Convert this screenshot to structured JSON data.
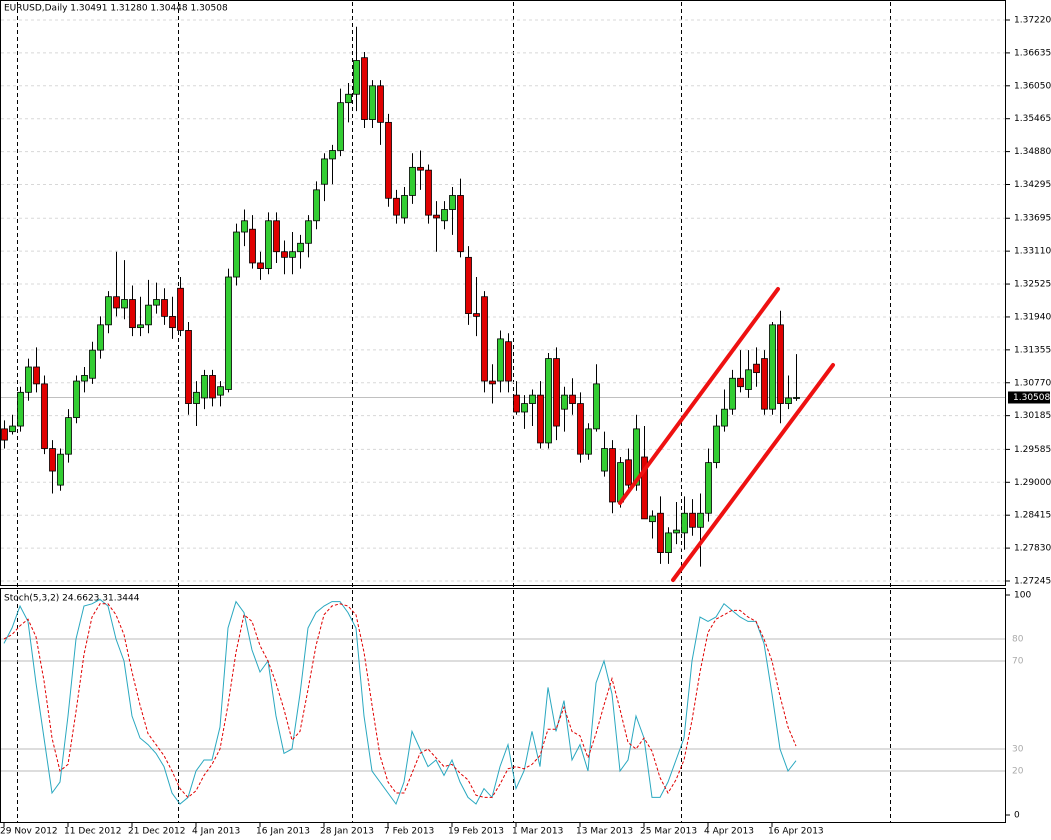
{
  "chart_data": [
    {
      "type": "candlestick",
      "title": "EURUSD,Daily  1.30491 1.31280 1.30448 1.30508",
      "categories": [
        "29 Nov 2012",
        null,
        null,
        null,
        null,
        null,
        null,
        null,
        "11 Dec 2012",
        null,
        null,
        null,
        null,
        null,
        null,
        null,
        "21 Dec 2012",
        null,
        null,
        null,
        null,
        null,
        null,
        null,
        "4 Jan 2013",
        null,
        null,
        null,
        null,
        null,
        null,
        null,
        "16 Jan 2013",
        null,
        null,
        null,
        null,
        null,
        null,
        null,
        "28 Jan 2013",
        null,
        null,
        null,
        null,
        null,
        null,
        null,
        "7 Feb 2013",
        null,
        null,
        null,
        null,
        null,
        null,
        null,
        "19 Feb 2013",
        null,
        null,
        null,
        null,
        null,
        null,
        null,
        "1 Mar 2013",
        null,
        null,
        null,
        null,
        null,
        null,
        null,
        "13 Mar 2013",
        null,
        null,
        null,
        null,
        null,
        null,
        null,
        "25 Mar 2013",
        null,
        null,
        null,
        null,
        null,
        null,
        null,
        "4 Apr 2013",
        null,
        null,
        null,
        null,
        null,
        null,
        null,
        "16 Apr 2013",
        null,
        null,
        null
      ],
      "candles": [
        [
          1.2995,
          1.301,
          1.296,
          1.2975
        ],
        [
          1.299,
          1.302,
          1.2985,
          1.3
        ],
        [
          1.3,
          1.307,
          1.299,
          1.306
        ],
        [
          1.306,
          1.312,
          1.3045,
          1.3105
        ],
        [
          1.3105,
          1.314,
          1.306,
          1.3075
        ],
        [
          1.3075,
          1.309,
          1.295,
          1.296
        ],
        [
          1.296,
          1.2975,
          1.288,
          1.292
        ],
        [
          1.2895,
          1.296,
          1.2885,
          1.295
        ],
        [
          1.295,
          1.303,
          1.2935,
          1.3015
        ],
        [
          1.3015,
          1.309,
          1.3005,
          1.308
        ],
        [
          1.308,
          1.3105,
          1.306,
          1.309
        ],
        [
          1.3085,
          1.315,
          1.3075,
          1.3135
        ],
        [
          1.3135,
          1.3195,
          1.312,
          1.318
        ],
        [
          1.318,
          1.324,
          1.3165,
          1.323
        ],
        [
          1.323,
          1.331,
          1.3195,
          1.321
        ],
        [
          1.321,
          1.3295,
          1.319,
          1.3225
        ],
        [
          1.3225,
          1.325,
          1.316,
          1.3175
        ],
        [
          1.3175,
          1.323,
          1.316,
          1.318
        ],
        [
          1.318,
          1.326,
          1.3165,
          1.3215
        ],
        [
          1.3215,
          1.3255,
          1.32,
          1.3225
        ],
        [
          1.3225,
          1.3245,
          1.318,
          1.3195
        ],
        [
          1.3195,
          1.323,
          1.3155,
          1.3175
        ],
        [
          1.3245,
          1.3265,
          1.316,
          1.317
        ],
        [
          1.317,
          1.3185,
          1.302,
          1.304
        ],
        [
          1.304,
          1.308,
          1.3,
          1.306
        ],
        [
          1.305,
          1.31,
          1.303,
          1.309
        ],
        [
          1.309,
          1.31,
          1.3035,
          1.305
        ],
        [
          1.3055,
          1.308,
          1.3035,
          1.307
        ],
        [
          1.3065,
          1.328,
          1.306,
          1.3265
        ],
        [
          1.3265,
          1.336,
          1.325,
          1.3345
        ],
        [
          1.3345,
          1.3385,
          1.332,
          1.3365
        ],
        [
          1.335,
          1.3375,
          1.328,
          1.329
        ],
        [
          1.329,
          1.331,
          1.326,
          1.328
        ],
        [
          1.328,
          1.338,
          1.327,
          1.3365
        ],
        [
          1.3365,
          1.338,
          1.329,
          1.331
        ],
        [
          1.331,
          1.333,
          1.327,
          1.33
        ],
        [
          1.33,
          1.3345,
          1.327,
          1.331
        ],
        [
          1.331,
          1.334,
          1.328,
          1.3325
        ],
        [
          1.3325,
          1.3375,
          1.33,
          1.3365
        ],
        [
          1.3365,
          1.3435,
          1.335,
          1.342
        ],
        [
          1.343,
          1.3485,
          1.34,
          1.3475
        ],
        [
          1.3475,
          1.35,
          1.343,
          1.349
        ],
        [
          1.349,
          1.36,
          1.348,
          1.3575
        ],
        [
          1.3575,
          1.361,
          1.354,
          1.359
        ],
        [
          1.359,
          1.371,
          1.356,
          1.365
        ],
        [
          1.3655,
          1.3665,
          1.353,
          1.3545
        ],
        [
          1.3545,
          1.3615,
          1.353,
          1.3605
        ],
        [
          1.3605,
          1.3615,
          1.35,
          1.354
        ],
        [
          1.354,
          1.3555,
          1.339,
          1.3405
        ],
        [
          1.3405,
          1.342,
          1.336,
          1.3375
        ],
        [
          1.337,
          1.3425,
          1.336,
          1.341
        ],
        [
          1.341,
          1.3485,
          1.3395,
          1.346
        ],
        [
          1.346,
          1.349,
          1.342,
          1.3455
        ],
        [
          1.3455,
          1.3465,
          1.336,
          1.3375
        ],
        [
          1.3375,
          1.34,
          1.331,
          1.337
        ],
        [
          1.3365,
          1.34,
          1.335,
          1.3385
        ],
        [
          1.3385,
          1.3425,
          1.334,
          1.341
        ],
        [
          1.341,
          1.344,
          1.33,
          1.331
        ],
        [
          1.33,
          1.332,
          1.318,
          1.32
        ],
        [
          1.32,
          1.3265,
          1.316,
          1.3195
        ],
        [
          1.323,
          1.324,
          1.306,
          1.308
        ],
        [
          1.308,
          1.311,
          1.304,
          1.3075
        ],
        [
          1.308,
          1.317,
          1.306,
          1.3155
        ],
        [
          1.315,
          1.3165,
          1.306,
          1.308
        ],
        [
          1.3055,
          1.308,
          1.302,
          1.3025
        ],
        [
          1.3025,
          1.3055,
          1.2995,
          1.304
        ],
        [
          1.304,
          1.3065,
          1.3,
          1.3055
        ],
        [
          1.3055,
          1.308,
          1.296,
          1.297
        ],
        [
          1.297,
          1.313,
          1.296,
          1.312
        ],
        [
          1.312,
          1.314,
          1.2975,
          1.3
        ],
        [
          1.303,
          1.307,
          1.299,
          1.3055
        ],
        [
          1.3055,
          1.3085,
          1.302,
          1.304
        ],
        [
          1.304,
          1.306,
          1.2935,
          1.295
        ],
        [
          1.295,
          1.3005,
          1.294,
          1.2995
        ],
        [
          1.2995,
          1.311,
          1.299,
          1.3075
        ],
        [
          1.292,
          1.299,
          1.291,
          1.296
        ],
        [
          1.296,
          1.2975,
          1.2845,
          1.2865
        ],
        [
          1.2865,
          1.2945,
          1.2855,
          1.2935
        ],
        [
          1.294,
          1.296,
          1.2885,
          1.2895
        ],
        [
          1.2895,
          1.302,
          1.2885,
          1.2995
        ],
        [
          1.2945,
          1.3,
          1.2835,
          1.2835
        ],
        [
          1.283,
          1.285,
          1.28,
          1.284
        ],
        [
          1.2845,
          1.2875,
          1.2755,
          1.2775
        ],
        [
          1.2775,
          1.282,
          1.2755,
          1.281
        ],
        [
          1.281,
          1.2865,
          1.279,
          1.2815
        ],
        [
          1.281,
          1.2875,
          1.278,
          1.2845
        ],
        [
          1.2845,
          1.287,
          1.2805,
          1.282
        ],
        [
          1.282,
          1.288,
          1.275,
          1.2845
        ],
        [
          1.2845,
          1.296,
          1.283,
          1.2935
        ],
        [
          1.2935,
          1.302,
          1.2925,
          1.3
        ],
        [
          1.3,
          1.3065,
          1.299,
          1.303
        ],
        [
          1.303,
          1.31,
          1.302,
          1.3085
        ],
        [
          1.3085,
          1.3135,
          1.306,
          1.307
        ],
        [
          1.3065,
          1.3135,
          1.305,
          1.31
        ],
        [
          1.311,
          1.314,
          1.307,
          1.3095
        ],
        [
          1.312,
          1.3135,
          1.302,
          1.303
        ],
        [
          1.303,
          1.3185,
          1.302,
          1.318
        ],
        [
          1.318,
          1.3205,
          1.3005,
          1.304
        ],
        [
          1.304,
          1.309,
          1.303,
          1.305
        ],
        [
          1.30491,
          1.3128,
          1.30448,
          1.30508
        ]
      ],
      "up_color": "#32cd32",
      "down_color": "#e00000",
      "ylim": [
        1.27245,
        1.3722
      ],
      "yticks": [
        {
          "value": 1.3722,
          "label": "1.37220"
        },
        1.36635,
        {
          "value": 1.3605,
          "label": "1.36050"
        },
        1.35465,
        {
          "value": 1.3488,
          "label": "1.34880"
        },
        1.34295,
        1.33695,
        {
          "value": 1.3311,
          "label": "1.33110"
        },
        1.32525,
        {
          "value": 1.3194,
          "label": "1.31940"
        },
        1.31355,
        {
          "value": 1.3077,
          "label": "1.30770"
        },
        1.30185,
        1.29585,
        {
          "value": 1.29,
          "label": "1.29000"
        },
        1.28415,
        {
          "value": 1.2783,
          "label": "1.27830"
        },
        1.27245
      ],
      "last_price": 1.30508,
      "grid": true
    },
    {
      "type": "line",
      "title": "Stoch(5,3,2) 24.6623 31.3444",
      "series": [
        {
          "color": "#2aa8c0",
          "dashed": false,
          "values": [
            78,
            85,
            95,
            88,
            60,
            35,
            10,
            15,
            45,
            80,
            95,
            96,
            98,
            95,
            80,
            70,
            45,
            35,
            32,
            28,
            22,
            10,
            5,
            8,
            20,
            25,
            25,
            40,
            85,
            97,
            92,
            75,
            65,
            70,
            45,
            28,
            30,
            55,
            85,
            92,
            95,
            97,
            97,
            92,
            85,
            45,
            20,
            15,
            10,
            5,
            15,
            38,
            30,
            22,
            25,
            18,
            25,
            15,
            8,
            5,
            12,
            8,
            22,
            32,
            12,
            20,
            38,
            22,
            58,
            38,
            52,
            25,
            32,
            20,
            60,
            70,
            55,
            20,
            25,
            45,
            35,
            8,
            8,
            15,
            25,
            35,
            70,
            90,
            88,
            90,
            96,
            93,
            90,
            88,
            88,
            78,
            55,
            30,
            20,
            24.6623
          ]
        },
        {
          "color": "#e00000",
          "dashed": true,
          "values": [
            80,
            82,
            86,
            89,
            81,
            61,
            35,
            20,
            23,
            47,
            73,
            90,
            96,
            96,
            91,
            82,
            65,
            50,
            37,
            32,
            27,
            20,
            12,
            8,
            11,
            18,
            23,
            30,
            50,
            74,
            91,
            88,
            77,
            70,
            60,
            48,
            34,
            38,
            57,
            77,
            91,
            95,
            96,
            95,
            91,
            74,
            50,
            27,
            15,
            10,
            10,
            19,
            28,
            30,
            26,
            22,
            23,
            19,
            16,
            9,
            8,
            8,
            14,
            21,
            22,
            21,
            23,
            27,
            39,
            39,
            49,
            38,
            36,
            26,
            37,
            50,
            62,
            48,
            33,
            30,
            35,
            29,
            17,
            10,
            16,
            25,
            43,
            65,
            83,
            89,
            91,
            93,
            93,
            90,
            88,
            80,
            70,
            54,
            40,
            31.3444
          ]
        }
      ],
      "ylim": [
        0,
        100
      ],
      "yticks": [
        0,
        100
      ],
      "levels": [
        20,
        30,
        70,
        80
      ]
    }
  ]
}
